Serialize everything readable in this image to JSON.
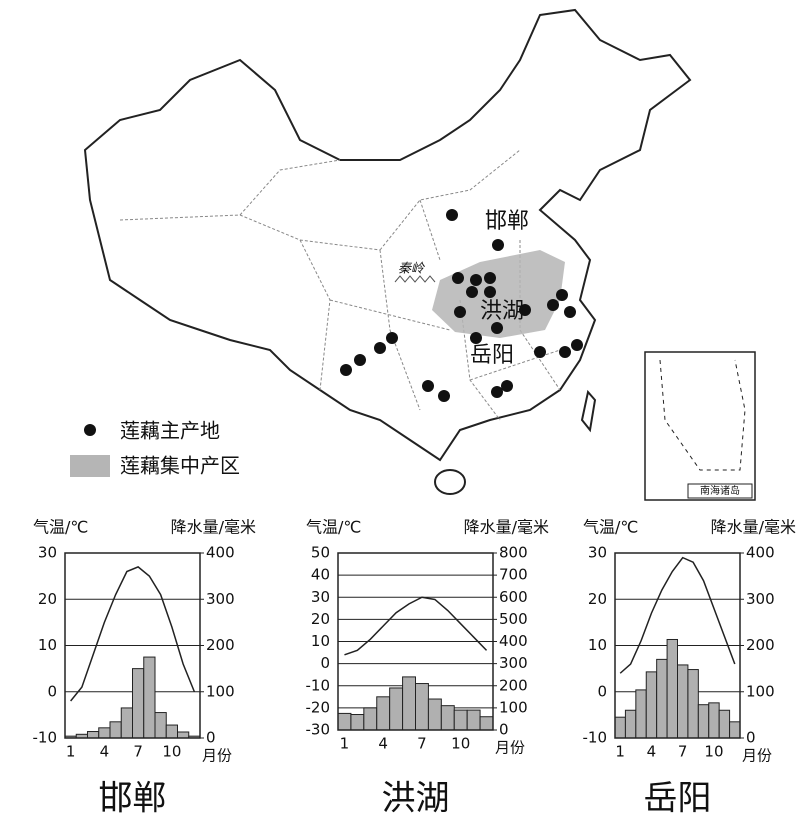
{
  "map": {
    "labels": {
      "handan": "邯郸",
      "honghu": "洪湖",
      "yueyang": "岳阳",
      "qinling": "秦岭"
    },
    "legend": {
      "main_area": "莲藕主产地",
      "concentrated_area": "莲藕集中产区"
    },
    "inset": "南海诸岛"
  },
  "chart_data": [
    {
      "type": "climate",
      "title": "邯郸",
      "ylabel": "气温/℃",
      "y2label": "降水量/毫米",
      "xlabel": "月份",
      "categories": [
        1,
        null,
        null,
        4,
        null,
        null,
        7,
        null,
        null,
        10,
        null,
        null
      ],
      "series": [
        {
          "kind": "line",
          "color": "#222222",
          "values": [
            -2,
            1,
            8,
            15,
            21,
            26,
            27,
            25,
            21,
            14,
            6,
            0
          ]
        },
        {
          "kind": "bar",
          "axis": "y2",
          "color": "#b0b0b0",
          "values": [
            4,
            8,
            14,
            22,
            35,
            65,
            150,
            175,
            55,
            28,
            13,
            4
          ]
        }
      ],
      "ylim": [
        -10,
        30
      ],
      "yticks": [
        -10,
        0,
        10,
        20,
        30
      ],
      "y2lim": [
        0,
        400
      ],
      "y2ticks": [
        0,
        100,
        200,
        300,
        400
      ],
      "grid": true
    },
    {
      "type": "climate",
      "title": "洪湖",
      "ylabel": "气温/℃",
      "y2label": "降水量/毫米",
      "xlabel": "月份",
      "categories": [
        1,
        null,
        null,
        4,
        null,
        null,
        7,
        null,
        null,
        10,
        null,
        null
      ],
      "series": [
        {
          "kind": "line",
          "color": "#222222",
          "values": [
            4,
            6,
            11,
            17,
            23,
            27,
            30,
            29,
            24,
            18,
            12,
            6
          ]
        },
        {
          "kind": "bar",
          "axis": "y2",
          "color": "#b0b0b0",
          "values": [
            75,
            70,
            100,
            150,
            190,
            240,
            210,
            140,
            110,
            90,
            90,
            60
          ]
        }
      ],
      "ylim": [
        -30,
        50
      ],
      "yticks": [
        -30,
        -20,
        -10,
        0,
        10,
        20,
        30,
        40,
        50
      ],
      "y2lim": [
        0,
        800
      ],
      "y2ticks": [
        0,
        100,
        200,
        300,
        400,
        500,
        600,
        700,
        800
      ],
      "grid": true
    },
    {
      "type": "climate",
      "title": "岳阳",
      "ylabel": "气温/℃",
      "y2label": "降水量/毫米",
      "xlabel": "月份",
      "categories": [
        1,
        null,
        null,
        4,
        null,
        null,
        7,
        null,
        null,
        10,
        null,
        null
      ],
      "series": [
        {
          "kind": "line",
          "color": "#222222",
          "values": [
            4,
            6,
            11,
            17,
            22,
            26,
            29,
            28,
            24,
            18,
            12,
            6
          ]
        },
        {
          "kind": "bar",
          "axis": "y2",
          "color": "#b0b0b0",
          "values": [
            45,
            60,
            104,
            143,
            170,
            213,
            158,
            148,
            72,
            76,
            60,
            35
          ]
        }
      ],
      "ylim": [
        -10,
        30
      ],
      "yticks": [
        -10,
        0,
        10,
        20,
        30
      ],
      "y2lim": [
        0,
        400
      ],
      "y2ticks": [
        0,
        100,
        200,
        300,
        400
      ],
      "grid": true
    }
  ]
}
